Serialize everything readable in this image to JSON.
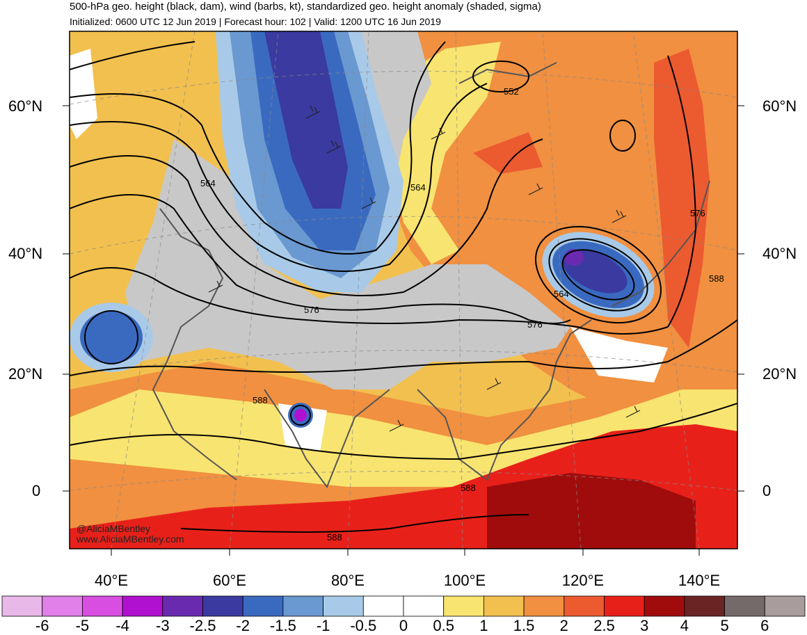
{
  "header": {
    "title": "500-hPa geo. height (black, dam), wind (barbs, kt), standardized geo. height anomaly (shaded, sigma)",
    "subtitle": "Initialized: 0600 UTC 12 Jun 2019 | Forecast hour: 102 | Valid: 1200 UTC 16 Jun 2019"
  },
  "axes": {
    "lat_left": [
      "60°N",
      "40°N",
      "20°N",
      "0"
    ],
    "lat_right": [
      "60°N",
      "40°N",
      "20°N",
      "0"
    ],
    "lon": [
      "40°E",
      "60°E",
      "80°E",
      "100°E",
      "120°E",
      "140°E"
    ]
  },
  "contour_labels": [
    "552",
    "564",
    "564",
    "576",
    "576",
    "576",
    "588",
    "588",
    "588",
    "588",
    "564"
  ],
  "credits": {
    "handle": "@AliciaMBentley",
    "site": "www.AliciaMBentley.com"
  },
  "colorbar": {
    "ticks": [
      "-6",
      "-5",
      "-4",
      "-3",
      "-2.5",
      "-2",
      "-1.5",
      "-1",
      "-0.5",
      "0",
      "0.5",
      "1",
      "1.5",
      "2",
      "2.5",
      "3",
      "4",
      "5",
      "6"
    ],
    "colors": [
      "#e8b8e8",
      "#e080e8",
      "#d84ee0",
      "#b010d0",
      "#6a2ab0",
      "#3a3aa0",
      "#3a6ac0",
      "#6a98d0",
      "#a8cae8",
      "#ffffff",
      "#ffffff",
      "#f8e470",
      "#f2c04e",
      "#f09040",
      "#ec5a30",
      "#e8201a",
      "#a00c0c",
      "#6a2424",
      "#746a6a",
      "#a89c9c"
    ]
  },
  "colors": {
    "neg_strong": "#3a3aa0",
    "neg_mid": "#3a6ac0",
    "neg_light": "#a8cae8",
    "neutral_gray": "#c8c8c8",
    "pos_yellow": "#f8e470",
    "pos_orange": "#f09040",
    "pos_red": "#e8201a",
    "pos_dark_red": "#a00c0c",
    "anomaly_purple": "#b010d0"
  }
}
